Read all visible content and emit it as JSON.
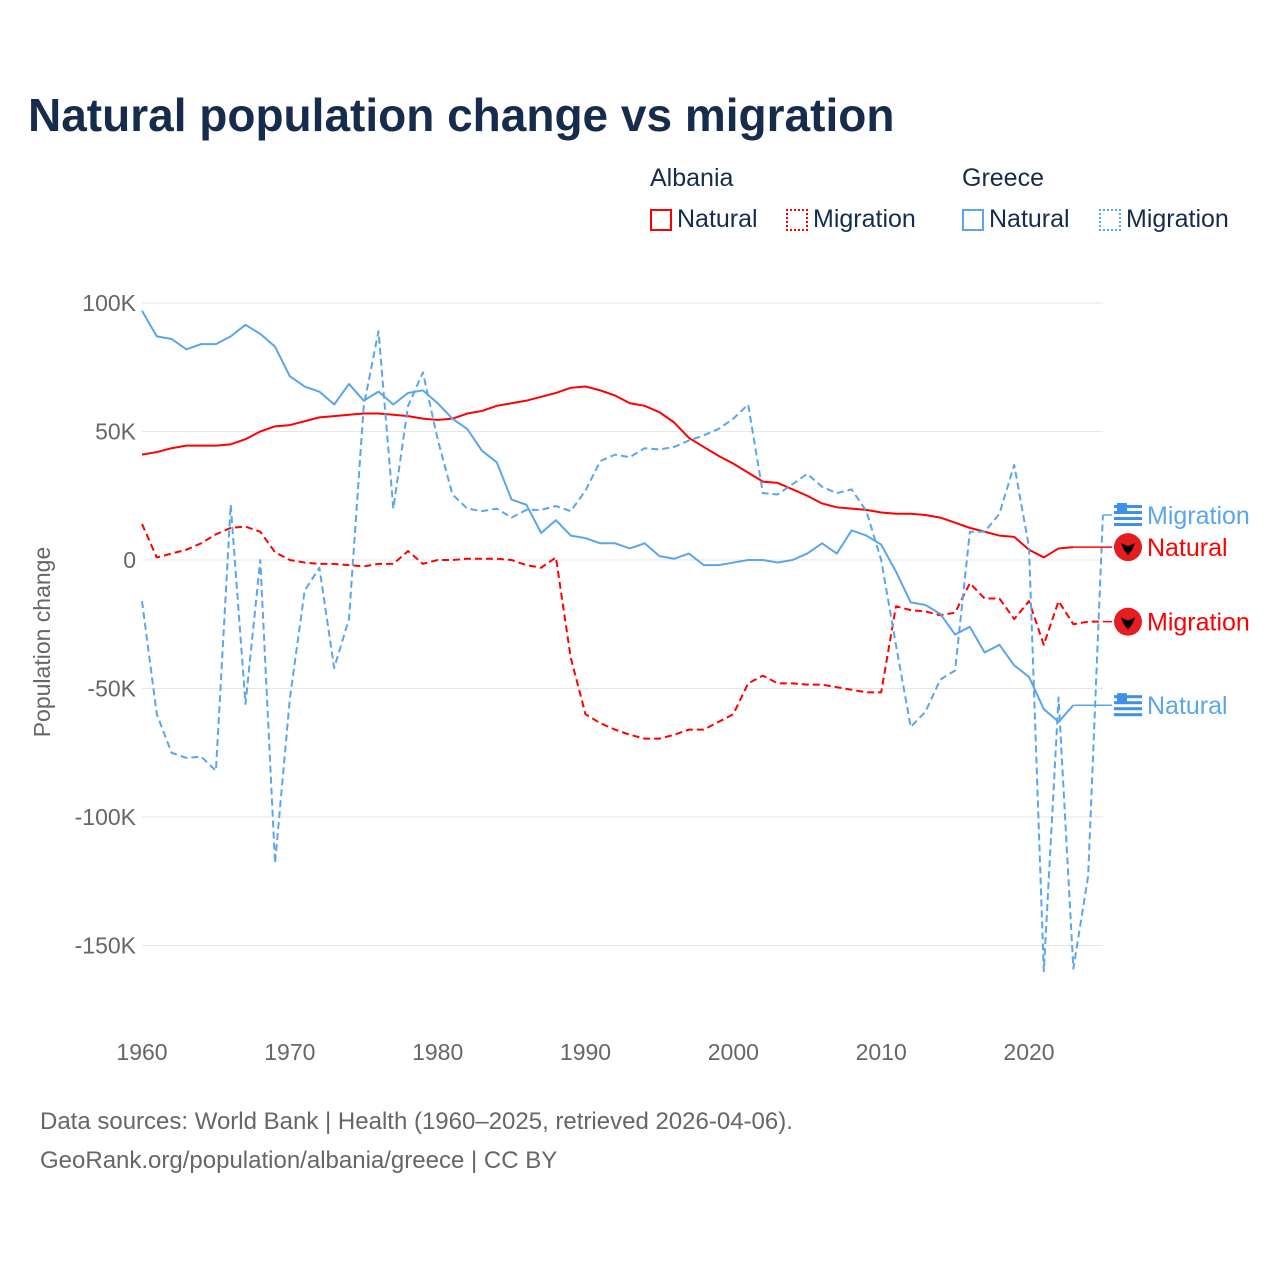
{
  "title": "Natural population change vs migration",
  "legend": {
    "groups": [
      {
        "country": "Albania",
        "items": [
          "Natural",
          "Migration"
        ]
      },
      {
        "country": "Greece",
        "items": [
          "Natural",
          "Migration"
        ]
      }
    ]
  },
  "footer": {
    "line1": "Data sources: World Bank | Health (1960–2025, retrieved 2026-04-06).",
    "line2": "GeoRank.org/population/albania/greece | CC BY"
  },
  "colors": {
    "albania": "#ff0000",
    "greece": "#5aa5ec",
    "title": "#172b4d"
  },
  "chart_data": {
    "type": "line",
    "title": "Natural population change vs migration",
    "xlabel": "",
    "ylabel": "Population change",
    "xlim": [
      1960,
      2025
    ],
    "ylim": [
      -165000,
      105000
    ],
    "xticks": [
      1960,
      1970,
      1980,
      1990,
      2000,
      2010,
      2020
    ],
    "xtick_labels": [
      "1960",
      "1970",
      "1980",
      "1990",
      "2000",
      "2010",
      "2020"
    ],
    "yticks": [
      100000,
      50000,
      0,
      -50000,
      -100000,
      -150000
    ],
    "ytick_labels": [
      "100K",
      "50K",
      "0",
      "-50K",
      "-100K",
      "-150K"
    ],
    "grid": true,
    "legend_position": "top-right",
    "series": [
      {
        "name": "Natural",
        "country": "Albania",
        "style": "solid",
        "start": 1960,
        "values_k": [
          41,
          42,
          43.5,
          44.5,
          44.5,
          44.5,
          45,
          47,
          50,
          52,
          52.5,
          54,
          55.5,
          56,
          56.5,
          57,
          57,
          56.5,
          56,
          55,
          54.5,
          55,
          57,
          58,
          60,
          61,
          62,
          63.5,
          65,
          67,
          67.5,
          66,
          64,
          61,
          60,
          57.5,
          53.5,
          47.5,
          44,
          40.5,
          37.5,
          34,
          30.5,
          30,
          27.5,
          25,
          22,
          20.5,
          20,
          19.5,
          18.5,
          18,
          18,
          17.5,
          16.5,
          14.5,
          12.5,
          11,
          9.5,
          9,
          4,
          1,
          4.5,
          5
        ]
      },
      {
        "name": "Migration",
        "country": "Albania",
        "style": "dashed",
        "start": 1960,
        "values_k": [
          14,
          1,
          2.5,
          4,
          6.5,
          10,
          12.5,
          13,
          11,
          3,
          0,
          -1,
          -1.5,
          -1.5,
          -2,
          -2.5,
          -1.5,
          -1.5,
          3.5,
          -1.5,
          0,
          0,
          0.5,
          0.5,
          0.5,
          0,
          -2,
          -3,
          1,
          -38,
          -60,
          -63.5,
          -66,
          -68,
          -69.5,
          -69.5,
          -68,
          -66,
          -66,
          -63,
          -60,
          -48,
          -45,
          -48,
          -48,
          -48.5,
          -48.5,
          -49.5,
          -50.5,
          -51.5,
          -51.5,
          -18,
          -19.5,
          -20,
          -21.5,
          -20.5,
          -9,
          -15,
          -15,
          -23,
          -16,
          -33,
          -16,
          -25,
          -24,
          -24
        ]
      },
      {
        "name": "Natural",
        "country": "Greece",
        "style": "solid",
        "start": 1960,
        "values_k": [
          97,
          87,
          86,
          82,
          84,
          84,
          87,
          91.5,
          88,
          83,
          71.5,
          67.5,
          65.5,
          60.5,
          68.5,
          62,
          65.5,
          60.5,
          65,
          66,
          61,
          55,
          51,
          42.5,
          38,
          23.5,
          21.5,
          10.5,
          15.5,
          9.5,
          8.5,
          6.5,
          6.5,
          4.5,
          6.5,
          1.5,
          0.5,
          2.5,
          -2,
          -2,
          -1,
          0,
          0,
          -1,
          0,
          2.5,
          6.5,
          2.5,
          11.5,
          9.5,
          6,
          -4.5,
          -16.5,
          -17.5,
          -21,
          -29,
          -26,
          -36,
          -33,
          -41,
          -45.5,
          -58,
          -63,
          -56.5
        ]
      },
      {
        "name": "Migration",
        "country": "Greece",
        "style": "dashed",
        "start": 1960,
        "values_k": [
          -16,
          -60,
          -75,
          -77,
          -76.5,
          -82,
          21.5,
          -56,
          0,
          -118,
          -54,
          -12,
          -3,
          -42,
          -23,
          60,
          89,
          20,
          60,
          73,
          47,
          25.5,
          20,
          19,
          20,
          16.5,
          19.5,
          19.5,
          21,
          19,
          27,
          38.5,
          41,
          40,
          43.5,
          43,
          44,
          46.5,
          48.5,
          51,
          55,
          60.5,
          26,
          25.5,
          29.5,
          33.5,
          28.5,
          26,
          27.5,
          19,
          0,
          -33,
          -65,
          -59,
          -46.5,
          -43,
          11,
          11,
          18,
          37,
          5,
          -160,
          -53.5,
          -159,
          -123,
          17.5
        ]
      }
    ]
  }
}
